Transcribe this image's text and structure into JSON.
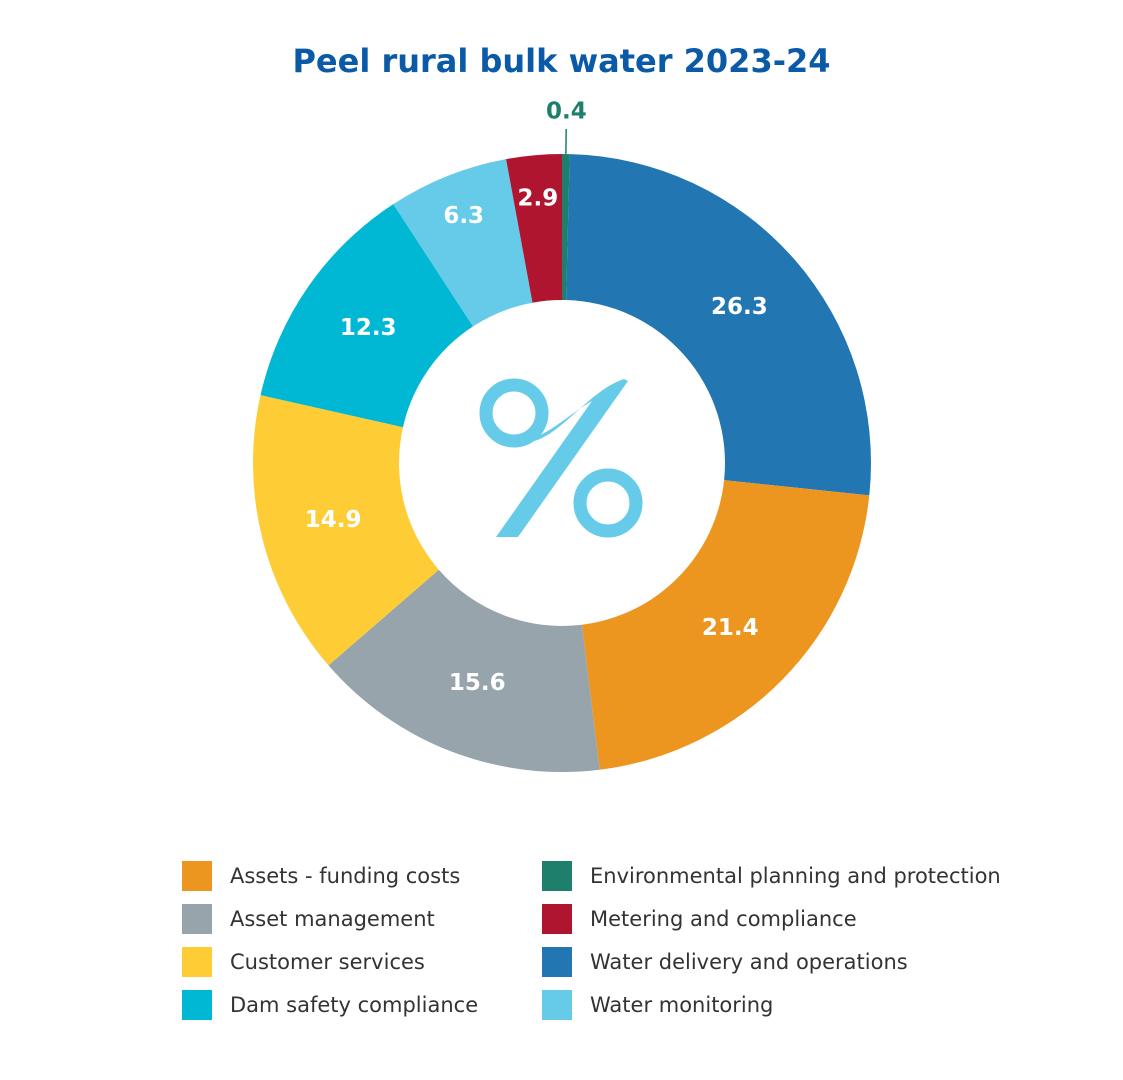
{
  "chart_data": {
    "type": "pie",
    "title": "Peel rural bulk water 2023-24",
    "center_symbol": "%",
    "slices": [
      {
        "label": "Environmental planning and protection",
        "value": 0.4,
        "value_label": "0.4",
        "color": "#1e7f6c"
      },
      {
        "label": "Water delivery and operations",
        "value": 26.3,
        "value_label": "26.3",
        "color": "#2276b1"
      },
      {
        "label": "Assets - funding costs",
        "value": 21.4,
        "value_label": "21.4",
        "color": "#ed961f"
      },
      {
        "label": "Asset management",
        "value": 15.6,
        "value_label": "15.6",
        "color": "#97a4ab"
      },
      {
        "label": "Customer services",
        "value": 14.9,
        "value_label": "14.9",
        "color": "#fecd36"
      },
      {
        "label": "Dam safety compliance",
        "value": 12.3,
        "value_label": "12.3",
        "color": "#00b8d4"
      },
      {
        "label": "Water monitoring",
        "value": 6.3,
        "value_label": "6.3",
        "color": "#65cbe8"
      },
      {
        "label": "Metering and compliance",
        "value": 2.9,
        "value_label": "2.9",
        "color": "#b0152f"
      }
    ],
    "legend": {
      "placement": "bottom",
      "columns": [
        [
          "Assets - funding costs",
          "Asset management",
          "Customer services",
          "Dam safety compliance"
        ],
        [
          "Environmental planning and protection",
          "Metering and compliance",
          "Water delivery and operations",
          "Water monitoring"
        ]
      ]
    }
  }
}
